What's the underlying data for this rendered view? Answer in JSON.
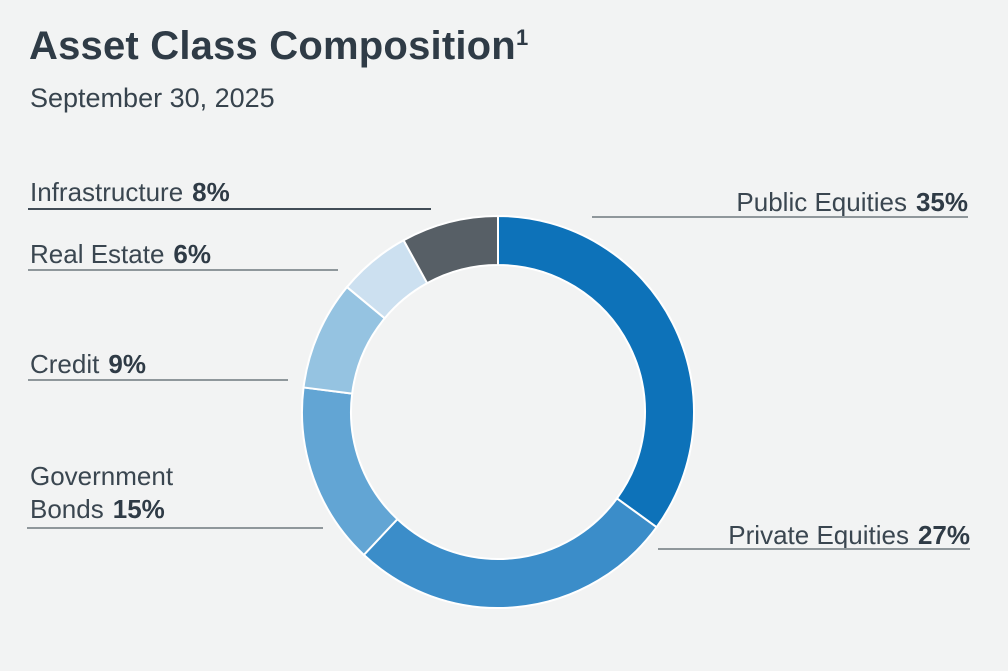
{
  "header": {
    "title": "Asset Class Composition",
    "footnote_marker": "1",
    "subtitle": "September 30, 2025"
  },
  "chart_data": {
    "type": "pie",
    "subtype": "donut",
    "title": "Asset Class Composition",
    "as_of_date": "September 30, 2025",
    "start_angle_deg": 0,
    "direction": "clockwise",
    "inner_radius_ratio": 0.75,
    "separator_color": "#FFFFFF",
    "total": 100,
    "segments": [
      {
        "label": "Public Equities",
        "value": 35,
        "pct_display": "35%",
        "color": "#0D72B9"
      },
      {
        "label": "Private Equities",
        "value": 27,
        "pct_display": "27%",
        "color": "#3B8DC9"
      },
      {
        "label": "Government Bonds",
        "value": 15,
        "pct_display": "15%",
        "color": "#62A5D4"
      },
      {
        "label": "Credit",
        "value": 9,
        "pct_display": "9%",
        "color": "#95C3E1"
      },
      {
        "label": "Real Estate",
        "value": 6,
        "pct_display": "6%",
        "color": "#CCE0F0"
      },
      {
        "label": "Infrastructure",
        "value": 8,
        "pct_display": "8%",
        "color": "#575F66"
      }
    ],
    "legend_position": "outside-callouts"
  },
  "style": {
    "background": "#F2F3F3",
    "title_color": "#2F3B46",
    "label_color": "#3A4650",
    "leader_line_color": "#8F979B",
    "leader_line_dark_color": "#414C56"
  }
}
